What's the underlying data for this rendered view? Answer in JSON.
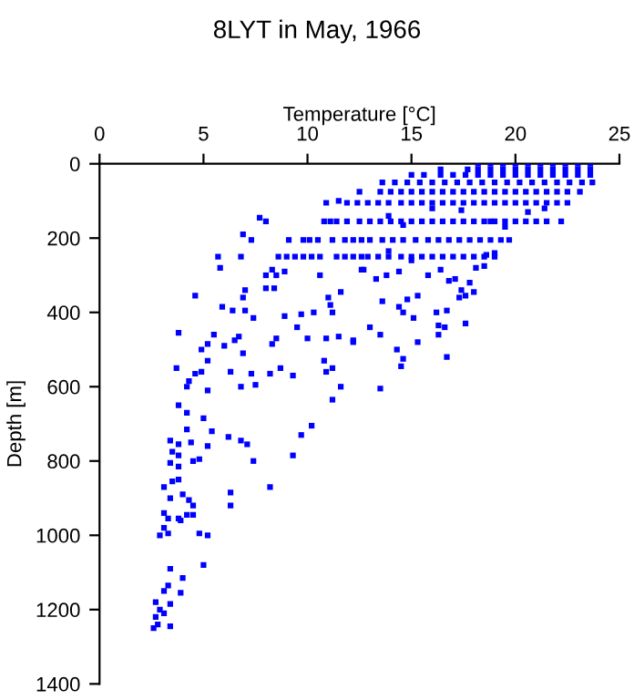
{
  "chart_data": {
    "type": "scatter",
    "title": "8LYT in May, 1966",
    "xlabel": "Temperature [°C]",
    "ylabel": "Depth [m]",
    "xlim": [
      0,
      25
    ],
    "xticks": [
      0,
      5,
      10,
      15,
      20,
      25
    ],
    "ylim": [
      1400,
      0
    ],
    "yticks": [
      0,
      200,
      400,
      600,
      800,
      1000,
      1200,
      1400
    ],
    "marker": "square",
    "series": [
      {
        "color": "#0000ff",
        "x": [
          3.8,
          4.2,
          5.0,
          4.2,
          5.4,
          3.4,
          4.4,
          3.8,
          5.2,
          6.2,
          6.8,
          7.1,
          3.5,
          3.8,
          3.4,
          4.5,
          4.8,
          7.4,
          3.8,
          9.3,
          9.7,
          10.2,
          3.5,
          3.8,
          3.1,
          8.2,
          4.0,
          3.4,
          4.3,
          6.3,
          6.3,
          4.5,
          3.1,
          3.3,
          3.8,
          4.2,
          4.5,
          3.9,
          3.1,
          3.3,
          2.9,
          4.8,
          5.2,
          3.4,
          5.0,
          4.0,
          3.3,
          3.1,
          3.9,
          2.7,
          3.4,
          2.9,
          3.1,
          2.7,
          2.8,
          2.6,
          3.4
        ],
        "values": [
          650,
          670,
          685,
          715,
          720,
          745,
          750,
          755,
          760,
          735,
          745,
          755,
          775,
          785,
          805,
          800,
          795,
          800,
          815,
          785,
          730,
          705,
          855,
          850,
          870,
          870,
          890,
          900,
          905,
          885,
          920,
          920,
          940,
          955,
          955,
          945,
          945,
          960,
          980,
          995,
          1000,
          995,
          1000,
          1090,
          1080,
          1115,
          1135,
          1150,
          1155,
          1180,
          1185,
          1200,
          1210,
          1220,
          1240,
          1250,
          1245
        ]
      },
      {
        "color": "#0000ff",
        "x": [
          7.7,
          8.0,
          6.9,
          7.3,
          5.7,
          6.8,
          5.8,
          4.6,
          7.0,
          6.9,
          5.9,
          6.4,
          7.0,
          7.4,
          3.8,
          5.5,
          5.2,
          4.9,
          6.0,
          6.5,
          6.7,
          6.9,
          5.2,
          3.7,
          4.6,
          4.9,
          4.3,
          4.2,
          6.3,
          7.3,
          6.8,
          7.5,
          5.2,
          8.3,
          8.5,
          8.9,
          8.2,
          8.7,
          9.3,
          8.0,
          8.4,
          8.0,
          8.5,
          8.3,
          8.9,
          9.5,
          9.7,
          10.3,
          10.0,
          10.8,
          10.9,
          11.2,
          11.6,
          11.2,
          10.9,
          11.5,
          12.2,
          11.0,
          11.1,
          11.2,
          11.6,
          10.6,
          12.6,
          10.9,
          11.5,
          11.9,
          12.4,
          12.5
        ],
        "values": [
          145,
          155,
          190,
          205,
          250,
          250,
          280,
          355,
          340,
          360,
          385,
          395,
          395,
          415,
          455,
          460,
          485,
          500,
          490,
          475,
          465,
          510,
          530,
          550,
          565,
          560,
          585,
          600,
          560,
          565,
          600,
          595,
          610,
          485,
          470,
          410,
          565,
          550,
          570,
          335,
          335,
          300,
          300,
          285,
          290,
          440,
          405,
          400,
          470,
          530,
          560,
          550,
          600,
          635,
          470,
          465,
          475,
          360,
          380,
          400,
          345,
          300,
          285,
          105,
          100,
          105,
          105,
          75
        ]
      },
      {
        "color": "#0000ff",
        "x": [
          13.9,
          12.7,
          13.3,
          13.8,
          14.4,
          15.0,
          15.8,
          16.4,
          16.8,
          17.1,
          17.8,
          17.4,
          18.0,
          17.3,
          17.6,
          14.8,
          15.3,
          13.6,
          14.4,
          14.6,
          15.1,
          16.2,
          16.7,
          18.1,
          18.5,
          17.6,
          16.3,
          16.6,
          13.0,
          13.5,
          12.2,
          15.3,
          14.3,
          14.6,
          16.7,
          14.5,
          13.5,
          16.3,
          18.6,
          19.0,
          13.9,
          14.6,
          16.0,
          17.4,
          19.5,
          18.8,
          20.6,
          21.4
        ],
        "values": [
          235,
          285,
          310,
          300,
          290,
          260,
          300,
          285,
          315,
          310,
          320,
          340,
          345,
          360,
          355,
          365,
          355,
          370,
          385,
          400,
          415,
          400,
          395,
          280,
          275,
          430,
          435,
          440,
          440,
          460,
          480,
          480,
          500,
          525,
          520,
          545,
          605,
          460,
          245,
          240,
          140,
          165,
          120,
          125,
          170,
          155,
          130,
          120
        ]
      },
      {
        "color": "#0000ff",
        "x": [
          8.6,
          9.0,
          9.4,
          9.8,
          10.2,
          10.6,
          11.4,
          11.8,
          12.2,
          12.6,
          12.9,
          13.4,
          13.9,
          14.5,
          15.0,
          15.5,
          16.0,
          16.5,
          17.0,
          17.5,
          18.0,
          18.5,
          19.0
        ],
        "values": [
          250,
          250,
          250,
          250,
          250,
          250,
          250,
          250,
          250,
          250,
          250,
          250,
          250,
          250,
          250,
          250,
          250,
          250,
          250,
          250,
          250,
          250,
          250
        ]
      },
      {
        "color": "#0000ff",
        "x": [
          9.1,
          9.8,
          10.1,
          10.5,
          11.2,
          11.8,
          12.2,
          12.6,
          13.0,
          13.6,
          14.1,
          14.6,
          15.2,
          15.8,
          16.3,
          16.8,
          17.3,
          17.8,
          18.3,
          18.8,
          19.3,
          19.7
        ],
        "values": [
          205,
          205,
          205,
          205,
          205,
          205,
          205,
          205,
          205,
          205,
          205,
          205,
          205,
          205,
          205,
          205,
          205,
          205,
          205,
          205,
          205,
          205
        ]
      },
      {
        "color": "#0000ff",
        "x": [
          10.8,
          11.1,
          11.4,
          11.9,
          12.5,
          13.0,
          13.5,
          14.0,
          14.5,
          15.0,
          15.5,
          16.0,
          16.5,
          17.0,
          17.5,
          18.0,
          18.5,
          19.0,
          19.5,
          20.0,
          20.5,
          21.0,
          21.5,
          22.2
        ],
        "values": [
          155,
          155,
          155,
          155,
          155,
          155,
          155,
          155,
          155,
          155,
          155,
          155,
          155,
          155,
          155,
          155,
          155,
          155,
          155,
          155,
          155,
          155,
          155,
          155
        ]
      },
      {
        "color": "#0000ff",
        "x": [
          12.9,
          13.4,
          13.9,
          14.5,
          15.0,
          15.5,
          16.0,
          16.5,
          17.0,
          17.5,
          18.0,
          18.5,
          19.0,
          19.5,
          20.0,
          20.5,
          21.0,
          21.5,
          22.0,
          22.5
        ],
        "values": [
          105,
          105,
          105,
          105,
          105,
          105,
          105,
          105,
          105,
          105,
          105,
          105,
          105,
          105,
          105,
          105,
          105,
          105,
          105,
          105
        ]
      },
      {
        "color": "#0000ff",
        "x": [
          13.5,
          14.0,
          14.5,
          15.0,
          15.5,
          16.0,
          16.5,
          17.0,
          17.5,
          18.0,
          18.5,
          19.0,
          19.5,
          20.0,
          20.5,
          21.0,
          21.5,
          22.0,
          22.5,
          23.1
        ],
        "values": [
          75,
          75,
          75,
          75,
          75,
          75,
          75,
          75,
          75,
          75,
          75,
          75,
          75,
          75,
          75,
          75,
          75,
          75,
          75,
          75
        ]
      },
      {
        "color": "#0000ff",
        "x": [
          13.6,
          14.2,
          14.8,
          15.4,
          16.0,
          16.6,
          17.2,
          17.8,
          18.4,
          19.0,
          19.6,
          20.2,
          20.8,
          21.4,
          22.0,
          22.6,
          23.2,
          23.7
        ],
        "values": [
          50,
          50,
          50,
          50,
          50,
          50,
          50,
          50,
          50,
          50,
          50,
          50,
          50,
          50,
          50,
          50,
          50,
          50
        ]
      },
      {
        "color": "#0000ff",
        "x": [
          15.0,
          15.6,
          16.4,
          17.0,
          17.6,
          18.2,
          18.8,
          19.4,
          20.0,
          20.6,
          21.2,
          21.8,
          22.4,
          23.0,
          23.6
        ],
        "values": [
          30,
          30,
          30,
          30,
          30,
          30,
          30,
          30,
          30,
          30,
          30,
          30,
          30,
          30,
          30
        ]
      },
      {
        "color": "#0000ff",
        "x": [
          16.4,
          17.7,
          18.2,
          18.8,
          19.4,
          20.0,
          20.6,
          21.2,
          21.8,
          22.4,
          23.0,
          23.6
        ],
        "values": [
          15,
          15,
          15,
          15,
          15,
          15,
          15,
          15,
          15,
          15,
          15,
          15
        ]
      },
      {
        "color": "#0000ff",
        "x": [
          18.2,
          18.8,
          19.4,
          20.0,
          20.6,
          21.2,
          21.8,
          22.4,
          23.0,
          23.6
        ],
        "values": [
          0,
          0,
          0,
          0,
          0,
          0,
          0,
          0,
          0,
          0
        ]
      }
    ]
  }
}
